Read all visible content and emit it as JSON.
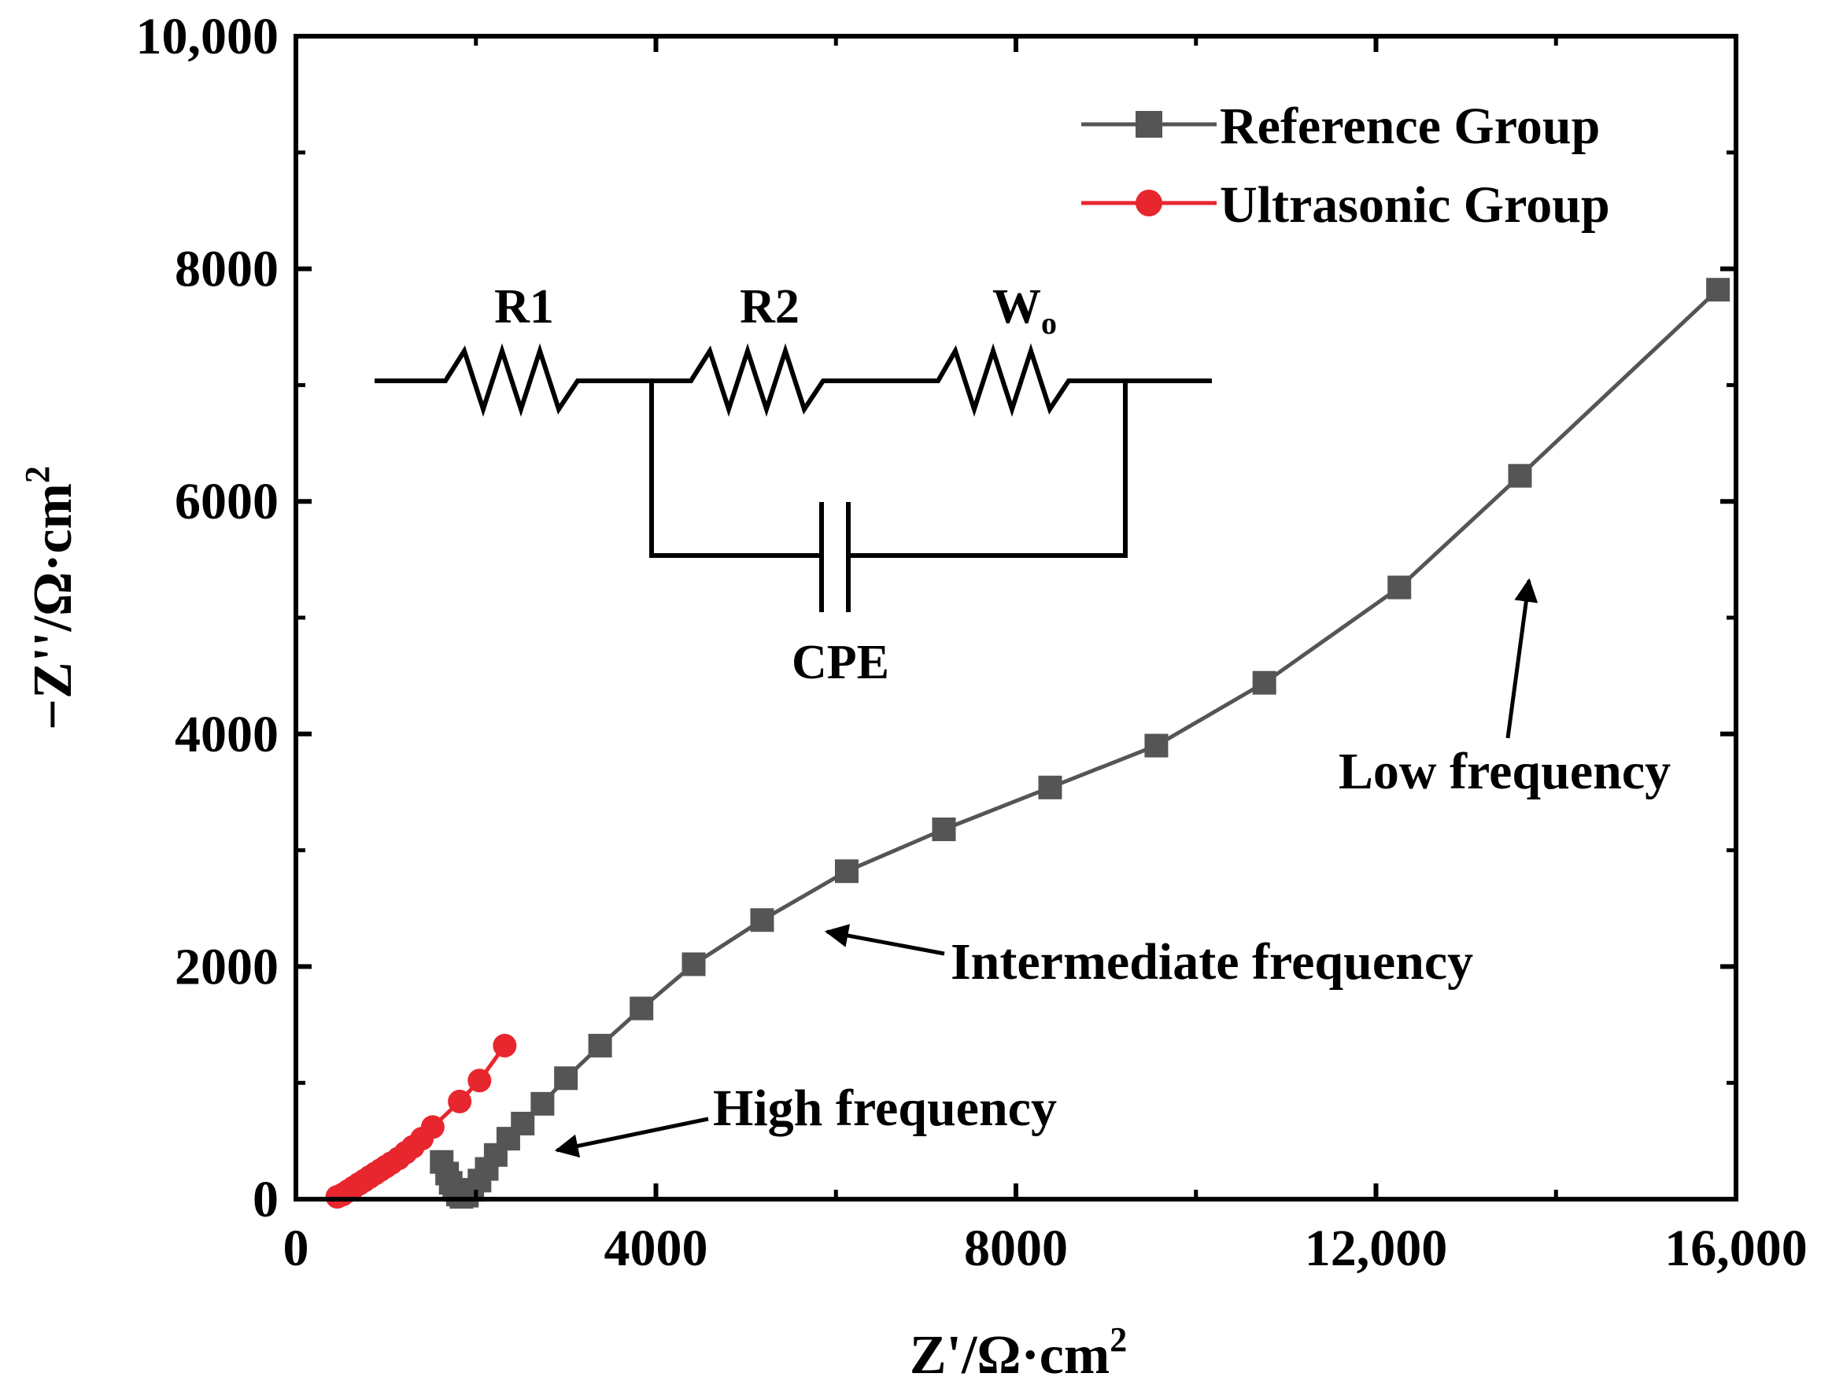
{
  "chart_data": {
    "type": "line",
    "xlabel": "Z'/Ω·cm",
    "xlabel_sup": "2",
    "ylabel": "−Z''/Ω·cm",
    "ylabel_sup": "2",
    "xlim": [
      0,
      16000
    ],
    "ylim": [
      0,
      10000
    ],
    "x_ticks": [
      0,
      4000,
      8000,
      12000,
      16000
    ],
    "x_tick_labels": [
      "0",
      "4000",
      "8000",
      "12,000",
      "16,000"
    ],
    "y_ticks": [
      0,
      2000,
      4000,
      6000,
      8000,
      10000
    ],
    "y_tick_labels": [
      "0",
      "2000",
      "4000",
      "6000",
      "8000",
      "10,000"
    ],
    "legend_position": "top-right",
    "series": [
      {
        "name": "Reference Group",
        "color": "#555555",
        "marker": "square",
        "x": [
          1620,
          1680,
          1720,
          1760,
          1800,
          1840,
          1900,
          1960,
          2040,
          2120,
          2220,
          2360,
          2520,
          2740,
          3000,
          3380,
          3840,
          4420,
          5180,
          6120,
          7200,
          8380,
          9560,
          10760,
          12260,
          13600,
          15800
        ],
        "y": [
          320,
          220,
          140,
          80,
          40,
          20,
          30,
          80,
          160,
          260,
          380,
          520,
          650,
          820,
          1040,
          1320,
          1640,
          2020,
          2400,
          2820,
          3180,
          3540,
          3900,
          4440,
          5260,
          6220,
          7820
        ]
      },
      {
        "name": "Ultrasonic Group",
        "color": "#e8262e",
        "marker": "circle",
        "x": [
          460,
          520,
          580,
          640,
          700,
          760,
          820,
          880,
          940,
          1000,
          1060,
          1140,
          1220,
          1300,
          1400,
          1520,
          1820,
          2040,
          2320
        ],
        "y": [
          20,
          40,
          70,
          100,
          130,
          160,
          190,
          220,
          250,
          280,
          310,
          350,
          400,
          450,
          520,
          620,
          840,
          1020,
          1320
        ]
      }
    ],
    "annotations": [
      {
        "text": "High frequency",
        "points_to": [
          2900,
          420
        ]
      },
      {
        "text": "Intermediate frequency",
        "points_to": [
          5900,
          2300
        ]
      },
      {
        "text": "Low frequency",
        "points_to": [
          13700,
          5320
        ]
      }
    ],
    "inset_circuit": {
      "labels": [
        "R1",
        "R2",
        "W",
        "CPE"
      ],
      "subscripts": {
        "W": "o"
      }
    }
  }
}
